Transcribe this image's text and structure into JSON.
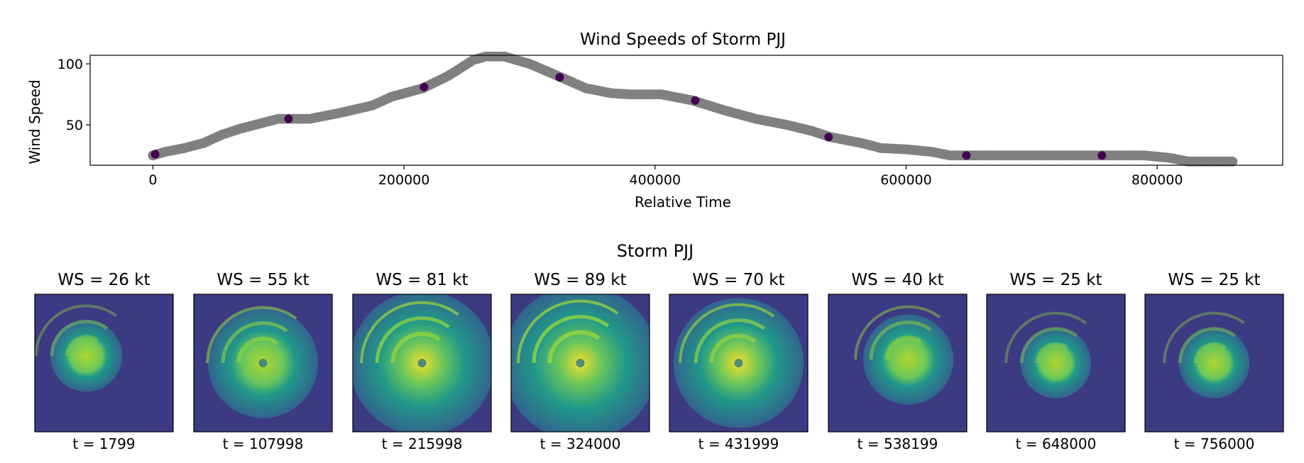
{
  "figure_colors": {
    "series_line": "#808080",
    "sample_point": "#440154",
    "frame": "#000000"
  },
  "chart_data": [
    {
      "type": "scatter",
      "title": "Wind Speeds of Storm PJJ",
      "xlabel": "Relative Time",
      "ylabel": "Wind Speed",
      "xlim": [
        -50000,
        900000
      ],
      "ylim": [
        17,
        107
      ],
      "xticks": [
        0,
        200000,
        400000,
        600000,
        800000
      ],
      "xtick_labels": [
        "0",
        "200000",
        "400000",
        "600000",
        "800000"
      ],
      "yticks": [
        50,
        100
      ],
      "ytick_labels": [
        "50",
        "100"
      ],
      "grid": false,
      "series": [
        {
          "points": [
            [
              0,
              25
            ],
            [
              10000,
              28
            ],
            [
              25000,
              31
            ],
            [
              40000,
              35
            ],
            [
              55000,
              42
            ],
            [
              70000,
              47
            ],
            [
              85000,
              51
            ],
            [
              100000,
              55
            ],
            [
              125000,
              55
            ],
            [
              150000,
              60
            ],
            [
              175000,
              66
            ],
            [
              190000,
              73
            ],
            [
              215000,
              80
            ],
            [
              235000,
              90
            ],
            [
              255000,
              103
            ],
            [
              265000,
              106
            ],
            [
              280000,
              106
            ],
            [
              300000,
              100
            ],
            [
              325000,
              89
            ],
            [
              345000,
              80
            ],
            [
              365000,
              76
            ],
            [
              380000,
              75
            ],
            [
              405000,
              75
            ],
            [
              430000,
              70
            ],
            [
              455000,
              62
            ],
            [
              480000,
              55
            ],
            [
              505000,
              50
            ],
            [
              525000,
              45
            ],
            [
              540000,
              40
            ],
            [
              565000,
              35
            ],
            [
              580000,
              31
            ],
            [
              600000,
              30
            ],
            [
              620000,
              28
            ],
            [
              635000,
              25
            ],
            [
              700000,
              25
            ],
            [
              750000,
              25
            ],
            [
              790000,
              25
            ],
            [
              810000,
              23
            ],
            [
              825000,
              20
            ],
            [
              840000,
              20
            ],
            [
              860000,
              20
            ]
          ]
        },
        {
          "points": [
            [
              1799,
              26
            ],
            [
              107998,
              55
            ],
            [
              215998,
              81
            ],
            [
              324000,
              89
            ],
            [
              431999,
              70
            ],
            [
              538199,
              40
            ],
            [
              648000,
              25
            ],
            [
              756000,
              25
            ]
          ]
        }
      ]
    },
    {
      "type": "image_grid",
      "title": "Storm PJJ",
      "panels": [
        {
          "ws": 26,
          "t": 1799,
          "title": "WS = 26 kt",
          "caption": "t = 1799"
        },
        {
          "ws": 55,
          "t": 107998,
          "title": "WS = 55 kt",
          "caption": "t = 107998"
        },
        {
          "ws": 81,
          "t": 215998,
          "title": "WS = 81 kt",
          "caption": "t = 215998"
        },
        {
          "ws": 89,
          "t": 324000,
          "title": "WS = 89 kt",
          "caption": "t = 324000"
        },
        {
          "ws": 70,
          "t": 431999,
          "title": "WS = 70 kt",
          "caption": "t = 431999"
        },
        {
          "ws": 40,
          "t": 538199,
          "title": "WS = 40 kt",
          "caption": "t = 538199"
        },
        {
          "ws": 25,
          "t": 648000,
          "title": "WS = 25 kt",
          "caption": "t = 648000"
        },
        {
          "ws": 25,
          "t": 756000,
          "title": "WS = 25 kt",
          "caption": "t = 756000"
        }
      ]
    }
  ]
}
